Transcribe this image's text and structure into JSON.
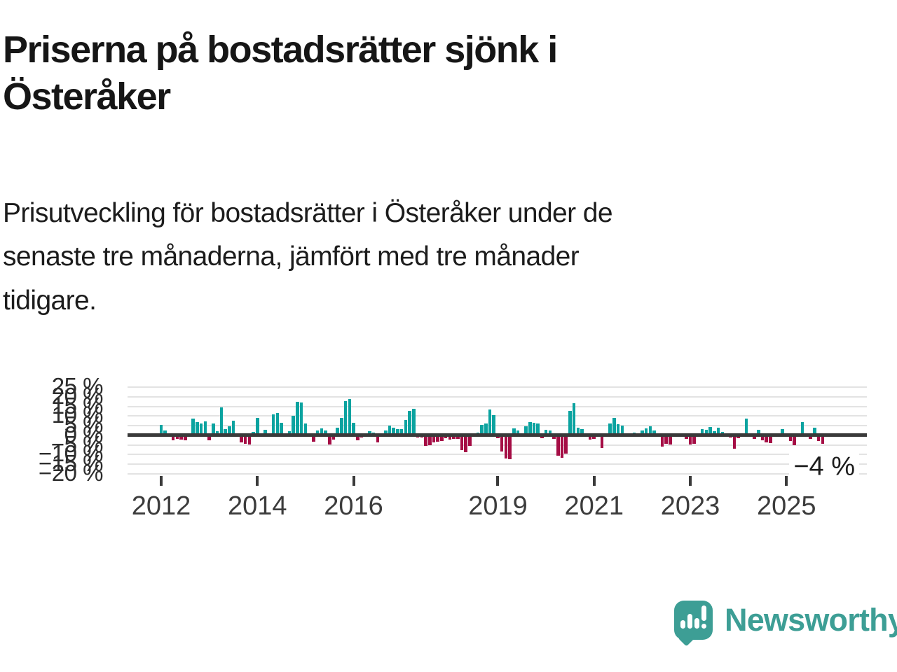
{
  "header": {
    "title": "Priserna på bostadsrätter sjönk i Österåker",
    "title_lines": [
      "Priserna på bostadsrätter sjönk i",
      "Österåker"
    ],
    "subtitle": "Prisutveckling för bostadsrätter i Österåker under de senaste tre månaderna, jämfört med tre månader tidigare.",
    "subtitle_lines": [
      "Prisutveckling för bostadsrätter i Österåker under de",
      "senaste tre månaderna, jämfört med tre månader",
      "tidigare."
    ]
  },
  "chart_data": {
    "type": "bar",
    "title": "Priserna på bostadsrätter sjönk i Österåker",
    "xlabel": "",
    "ylabel": "",
    "unit": "%",
    "frequency": "monthly",
    "period": {
      "start": "2012-01",
      "end": "2025-10"
    },
    "grid": true,
    "legend_position": "none",
    "ylim": [
      -22,
      27
    ],
    "y_ticks": [
      25,
      20,
      15,
      10,
      5,
      0,
      -5,
      -10,
      -15,
      -20
    ],
    "y_tick_labels": [
      "25 %",
      "20 %",
      "15 %",
      "10 %",
      "5 %",
      "0 %",
      "−5 %",
      "−10 %",
      "−15 %",
      "−20 %"
    ],
    "x_tick_years": [
      2012,
      2014,
      2016,
      2019,
      2021,
      2023,
      2025
    ],
    "x_tick_labels": [
      "2012",
      "2014",
      "2016",
      "2019",
      "2021",
      "2023",
      "2025"
    ],
    "annotation": "−4 %",
    "colors": {
      "positive": "#0ba3a0",
      "negative": "#a50d45",
      "zero_line": "#3a3a3a",
      "gridline": "#e3e3e3",
      "axis_text": "#3c3c3c"
    },
    "values": [
      5.5,
      2.5,
      0.3,
      -2.5,
      -2.0,
      -2.3,
      -2.5,
      0.4,
      8.5,
      7.0,
      6.3,
      7.3,
      -2.6,
      6.3,
      2.1,
      14.3,
      3.3,
      4.5,
      7.5,
      0.3,
      -3.6,
      -4.4,
      -4.8,
      1.8,
      9.1,
      0.3,
      3.0,
      0.3,
      10.9,
      11.7,
      6.4,
      0.3,
      2.1,
      10.3,
      17.3,
      16.9,
      6.0,
      0.3,
      -3.3,
      2.4,
      3.6,
      2.4,
      -4.8,
      -2.1,
      4.0,
      9.1,
      17.9,
      18.7,
      6.4,
      -2.4,
      -1.2,
      0.3,
      2.2,
      1.5,
      -3.8,
      0.3,
      2.5,
      5.2,
      4.0,
      3.2,
      3.2,
      8.0,
      12.5,
      13.8,
      -1.0,
      -1.2,
      -5.5,
      -5.2,
      -3.5,
      -3.3,
      -2.8,
      -1.5,
      -2.2,
      -2.0,
      -1.8,
      -7.8,
      -8.8,
      -5.5,
      1.2,
      1.5,
      5.5,
      6.2,
      13.5,
      10.5,
      -1.5,
      -8.5,
      -12.0,
      -12.5,
      3.5,
      2.5,
      0.3,
      4.5,
      7.0,
      6.5,
      6.0,
      -1.5,
      2.8,
      2.5,
      -1.8,
      -10.5,
      -11.8,
      -9.5,
      12.5,
      16.5,
      3.8,
      3.2,
      0.3,
      -2.2,
      -1.8,
      0.3,
      -6.5,
      0.3,
      6.2,
      9.0,
      5.8,
      5.2,
      1.2,
      -0.8,
      1.5,
      1.2,
      2.5,
      3.5,
      4.5,
      2.5,
      0.3,
      -6.0,
      -4.5,
      -4.8,
      0.3,
      0.8,
      0.3,
      -2.0,
      -4.8,
      -4.5,
      0.3,
      3.2,
      3.0,
      4.2,
      2.2,
      4.0,
      1.8,
      0.3,
      -1.0,
      -7.0,
      -1.5,
      0.3,
      8.5,
      0.3,
      -1.8,
      3.0,
      -2.6,
      -3.8,
      -4.0,
      0.3,
      1.2,
      3.3,
      0.7,
      -2.9,
      -5.2,
      1.2,
      6.7,
      1.2,
      -1.7,
      3.9,
      -2.9,
      -4.4
    ]
  },
  "logo": {
    "text": "Newsworthy",
    "icon": "speech-bubble-bar-chart-exclamation-icon",
    "color": "#3d9e95"
  }
}
